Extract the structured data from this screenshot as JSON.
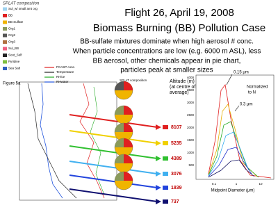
{
  "title": [
    "Flight 26, April 19, 2008",
    "Biomass Burning (BB) Pollution Case"
  ],
  "body": [
    "BB-sulfate mixtures dominate when high aerosol # conc.",
    "When particle concentrations are low (e.g. 6000 m ASL), less",
    "BB aerosol, other chemicals appear in pie chart,",
    "particles peak at smaller sizes"
  ],
  "composition_legend": {
    "title": "SPLAT composition",
    "items": [
      "Sul_w/ small amt org",
      "BB",
      "BB Sulfate",
      "Org1",
      "Org2",
      "Org3",
      "Sul_BB",
      "Soot_Sulf",
      "Pyridine",
      "Sea Salt"
    ]
  },
  "profile": {
    "figure_label": "Figure 5a",
    "legend": [
      "PCASP conc.",
      "Temperature",
      "RHice",
      "RHwater"
    ],
    "pie_label": "SPLAT composition"
  },
  "altitudes": {
    "title": [
      "Altitude (m)",
      "(at centre of",
      "average)"
    ],
    "labels": [
      "8107",
      "5235",
      "4389",
      "3076",
      "1839",
      "737"
    ]
  },
  "size_distribution": {
    "annotations": [
      "0.15 μm",
      "Normalized",
      "to N",
      "0.3 μm"
    ],
    "x_label": "Midpoint Diameter (μm)",
    "x_ticks": [
      "0.1",
      "1",
      "10"
    ],
    "y_ticks": [
      "4000",
      "3500",
      "3000",
      "2500",
      "2000",
      "1500",
      "1000",
      "500"
    ]
  }
}
